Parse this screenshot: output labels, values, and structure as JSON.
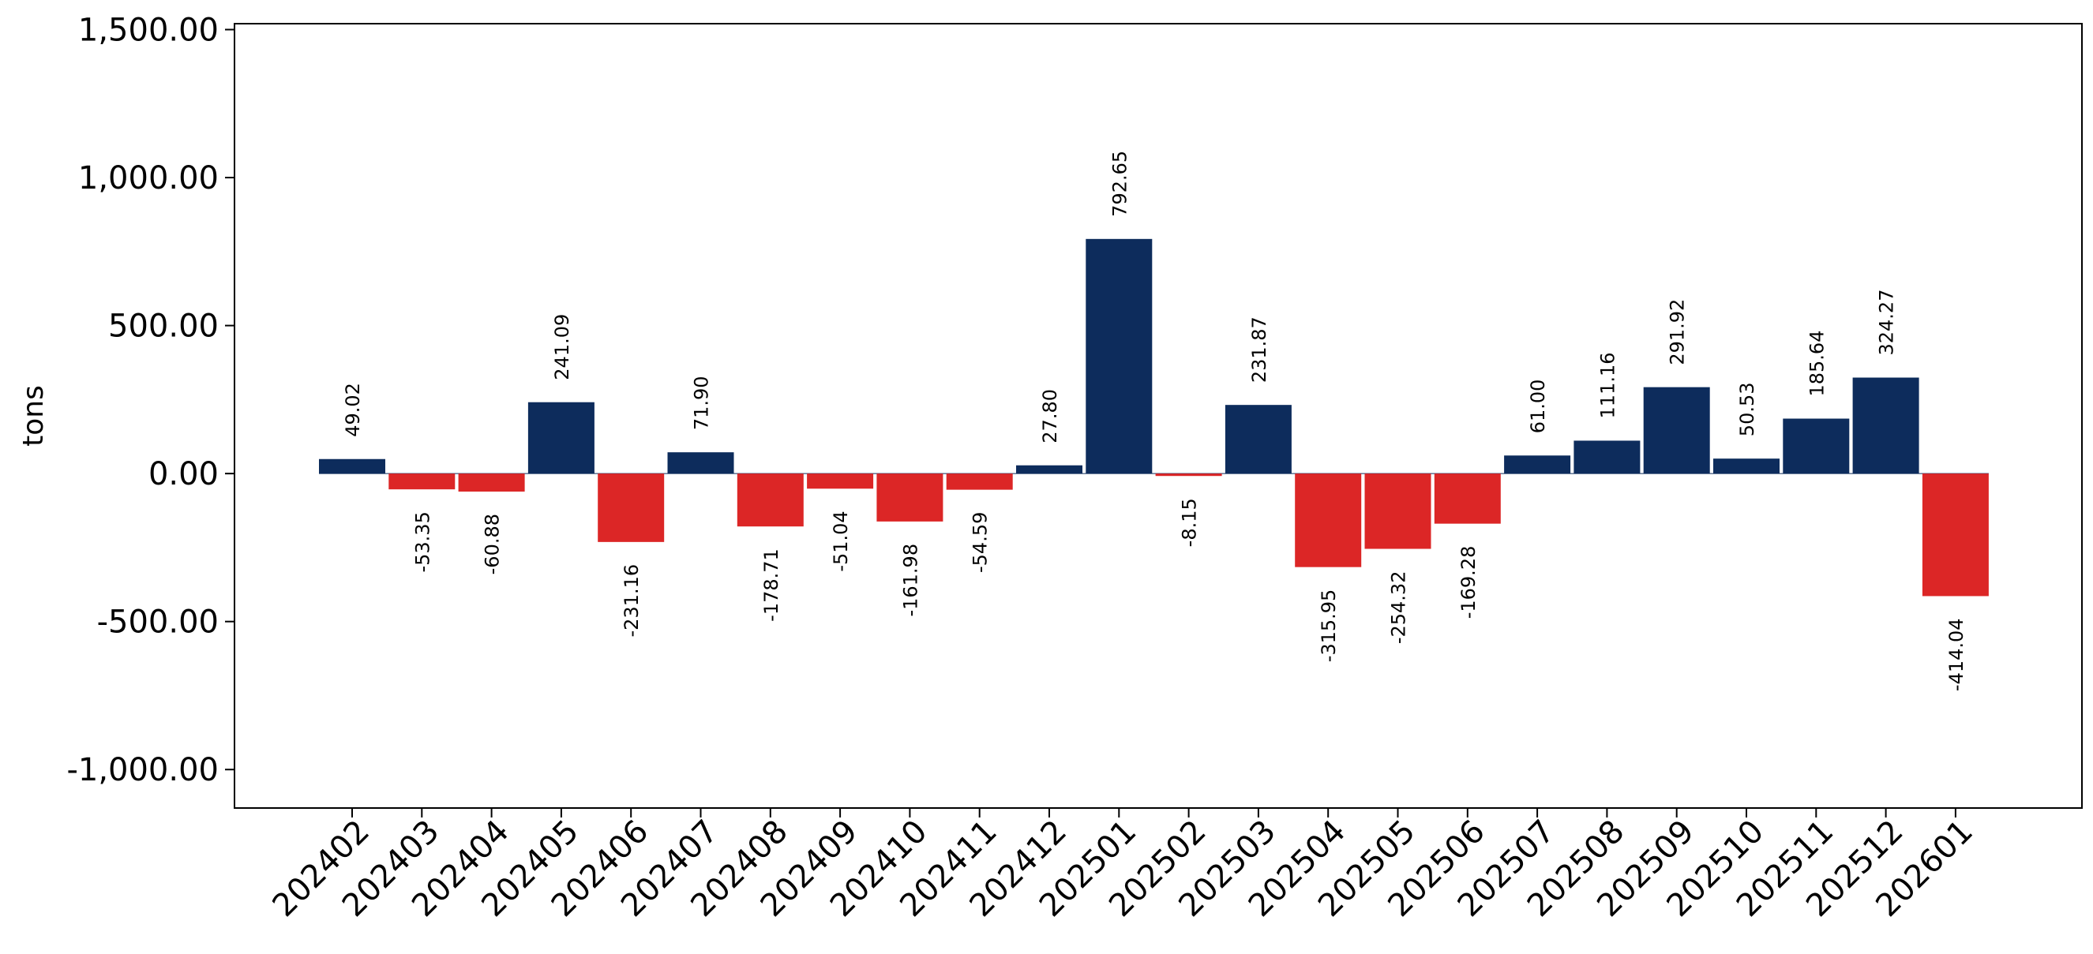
{
  "chart_data": {
    "type": "bar",
    "title": "",
    "xlabel": "",
    "ylabel": "tons",
    "ylim": [
      -1130,
      1520
    ],
    "yticks": [
      -1000,
      -500,
      0,
      500,
      1000,
      1500
    ],
    "ytick_labels": [
      "-1,000.00",
      "-500.00",
      "0.00",
      "500.00",
      "1,000.00",
      "1,500.00"
    ],
    "grid": false,
    "legend": "none",
    "positive_color": "#0d2c5c",
    "negative_color": "#dc2626",
    "categories": [
      "202402",
      "202403",
      "202404",
      "202405",
      "202406",
      "202407",
      "202408",
      "202409",
      "202410",
      "202411",
      "202412",
      "202501",
      "202502",
      "202503",
      "202504",
      "202505",
      "202506",
      "202507",
      "202508",
      "202509",
      "202510",
      "202511",
      "202512",
      "202601"
    ],
    "values": [
      49.02,
      -53.35,
      -60.88,
      241.09,
      -231.16,
      71.9,
      -178.71,
      -51.04,
      -161.98,
      -54.59,
      27.8,
      792.65,
      -8.15,
      231.87,
      -315.95,
      -254.32,
      -169.28,
      61.0,
      111.16,
      291.92,
      50.53,
      185.64,
      324.27,
      -414.04
    ],
    "value_labels": [
      "49.02",
      "-53.35",
      "-60.88",
      "241.09",
      "-231.16",
      "71.90",
      "-178.71",
      "-51.04",
      "-161.98",
      "-54.59",
      "27.80",
      "792.65",
      "-8.15",
      "231.87",
      "-315.95",
      "-254.32",
      "-169.28",
      "61.00",
      "111.16",
      "291.92",
      "50.53",
      "185.64",
      "324.27",
      "-414.04"
    ]
  }
}
